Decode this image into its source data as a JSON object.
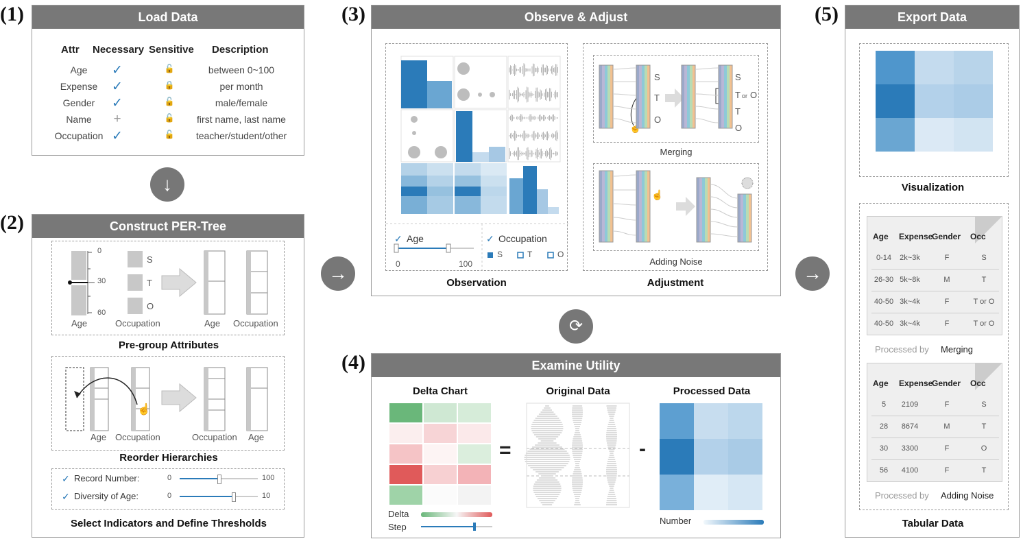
{
  "steps": {
    "s1": {
      "num": "(1)",
      "title": "Load Data"
    },
    "s2": {
      "num": "(2)",
      "title": "Construct PER-Tree"
    },
    "s3": {
      "num": "(3)",
      "title": "Observe & Adjust"
    },
    "s4": {
      "num": "(4)",
      "title": "Examine Utility"
    },
    "s5": {
      "num": "(5)",
      "title": "Export Data"
    }
  },
  "load_table": {
    "headers": [
      "Attr",
      "Necessary",
      "Sensitive",
      "Description"
    ],
    "rows": [
      {
        "attr": "Age",
        "necessary": "check",
        "sensitive": "unlocked",
        "desc": "between 0~100"
      },
      {
        "attr": "Expense",
        "necessary": "check",
        "sensitive": "locked",
        "desc": "per month"
      },
      {
        "attr": "Gender",
        "necessary": "check",
        "sensitive": "unlocked",
        "desc": "male/female"
      },
      {
        "attr": "Name",
        "necessary": "plus",
        "sensitive": "unlocked",
        "desc": "first name, last name"
      },
      {
        "attr": "Occupation",
        "necessary": "check",
        "sensitive": "unlocked",
        "desc": "teacher/student/other"
      }
    ]
  },
  "pregroup": {
    "ticks": [
      "0",
      "30",
      "60"
    ],
    "occ_labels": [
      "S",
      "T",
      "O"
    ],
    "labels": [
      "Age",
      "Occupation",
      "Age",
      "Occupation"
    ],
    "caption": "Pre-group Attributes"
  },
  "reorder": {
    "labels": [
      "Age",
      "Occupation",
      "Occupation",
      "Age"
    ],
    "caption": "Reorder Hierarchies"
  },
  "indicators": {
    "rows": [
      {
        "label": "Record Number:",
        "min": "0",
        "max": "100",
        "value": 0.5
      },
      {
        "label": "Diversity of Age:",
        "min": "0",
        "max": "10",
        "value": 0.68
      }
    ],
    "caption": "Select Indicators and Define Thresholds"
  },
  "observation": {
    "age_label": "Age",
    "age_min": "0",
    "age_max": "100",
    "occ_label": "Occupation",
    "occ_items": [
      "S",
      "T",
      "O"
    ],
    "caption": "Observation"
  },
  "adjustment": {
    "merge_labels": [
      "S",
      "T",
      "O"
    ],
    "merge_result": [
      "S",
      "T",
      "or",
      "O",
      "T",
      "O"
    ],
    "merging": "Merging",
    "adding_noise": "Adding Noise",
    "caption": "Adjustment"
  },
  "utility": {
    "delta_title": "Delta Chart",
    "original_title": "Original Data",
    "processed_title": "Processed Data",
    "eq": "=",
    "minus": "-",
    "delta_label": "Delta",
    "step_label": "Step",
    "number_label": "Number",
    "step_value": 0.75
  },
  "export": {
    "vis_caption": "Visualization",
    "table_caption": "Tabular Data",
    "table1": {
      "headers": [
        "Age",
        "Expense",
        "Gender",
        "Occ"
      ],
      "rows": [
        [
          "0-14",
          "2k~3k",
          "F",
          "S"
        ],
        [
          "26-30",
          "5k~8k",
          "M",
          "T"
        ],
        [
          "40-50",
          "3k~4k",
          "F",
          "T or O"
        ],
        [
          "40-50",
          "3k~4k",
          "F",
          "T or O"
        ]
      ],
      "processed_by": "Processed by",
      "method": "Merging"
    },
    "table2": {
      "headers": [
        "Age",
        "Expense",
        "Gender",
        "Occ"
      ],
      "rows": [
        [
          "5",
          "2109",
          "F",
          "S"
        ],
        [
          "28",
          "8674",
          "M",
          "T"
        ],
        [
          "30",
          "3300",
          "F",
          "O"
        ],
        [
          "56",
          "4100",
          "F",
          "T"
        ]
      ],
      "processed_by": "Processed by",
      "method": "Adding Noise"
    }
  },
  "arrows": {
    "down": "↓",
    "right": "→",
    "cycle": "⟳"
  },
  "colors": {
    "header": "#787878",
    "blue_dark": "#2b7bb9",
    "blue_mid": "#6aa6d2",
    "blue_light": "#c4dbee",
    "red": "#e05a5a",
    "green": "#6ab77a"
  }
}
